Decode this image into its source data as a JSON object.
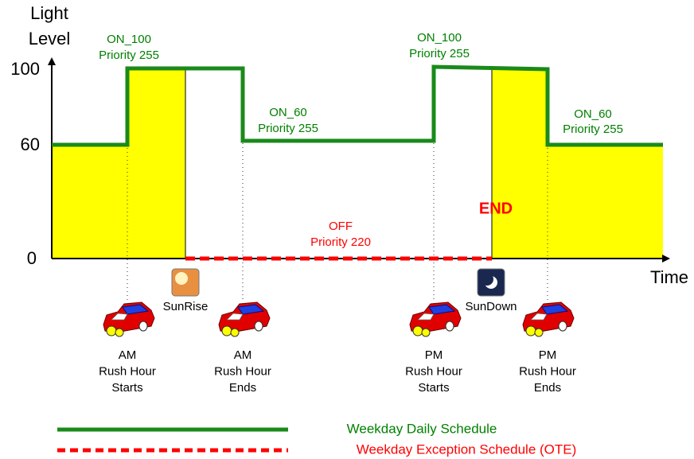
{
  "axis": {
    "y_title": [
      "Light",
      "Level"
    ],
    "y_ticks": [
      "100",
      "60",
      "0"
    ],
    "x_title": "Time"
  },
  "annotations": [
    {
      "lines": [
        "ON_100",
        "Priority 255"
      ]
    },
    {
      "lines": [
        "ON_60",
        "Priority 255"
      ]
    },
    {
      "lines": [
        "ON_100",
        "Priority 255"
      ]
    },
    {
      "lines": [
        "ON_60",
        "Priority 255"
      ]
    },
    {
      "lines": [
        "OFF",
        "Priority 220"
      ]
    },
    {
      "lines": [
        "END"
      ]
    }
  ],
  "sun_events": [
    "SunRise",
    "SunDown"
  ],
  "events": [
    {
      "lines": [
        "AM",
        "Rush Hour",
        "Starts"
      ]
    },
    {
      "lines": [
        "AM",
        "Rush Hour",
        "Ends"
      ]
    },
    {
      "lines": [
        "PM",
        "Rush Hour",
        "Starts"
      ]
    },
    {
      "lines": [
        "PM",
        "Rush Hour",
        "Ends"
      ]
    }
  ],
  "legend": [
    "Weekday Daily Schedule",
    "Weekday Exception Schedule (OTE)"
  ]
}
